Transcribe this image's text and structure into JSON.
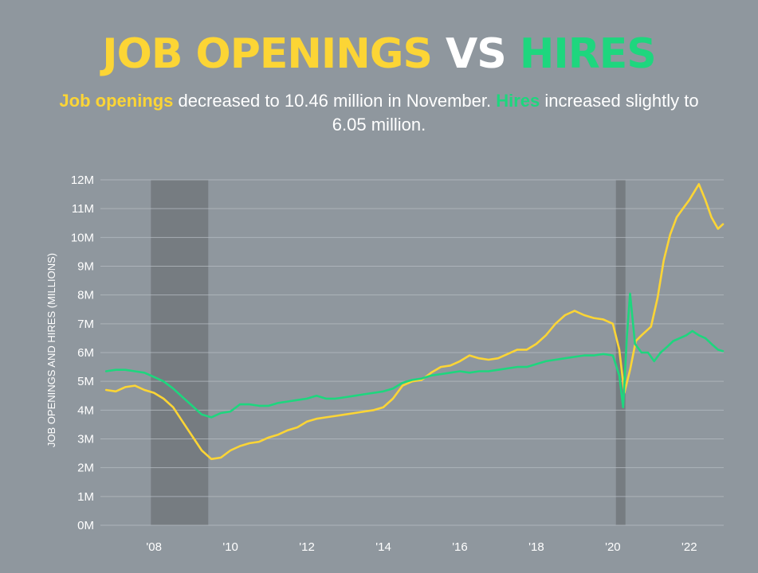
{
  "colors": {
    "background": "#8f979e",
    "openings": "#fcd535",
    "hires": "#1ed67e",
    "white": "#ffffff",
    "recession": "#6e7377",
    "grid": "#b4bac0"
  },
  "header": {
    "title_part1": "JOB OPENINGS",
    "title_part2": "VS",
    "title_part3": "HIRES",
    "sub_hl1": "Job openings",
    "sub_text1": " decreased to 10.46 million in November. ",
    "sub_hl2": "Hires",
    "sub_text2": " increased slightly to 6.05 million."
  },
  "chart_data": {
    "type": "line",
    "title": "JOB OPENINGS VS HIRES",
    "xlabel": "",
    "ylabel": "JOB OPENINGS AND HIRES (MILLIONS)",
    "xlim": [
      2006.6,
      2022.9
    ],
    "ylim": [
      0,
      12
    ],
    "grid": true,
    "y_ticks": [
      0,
      1,
      2,
      3,
      4,
      5,
      6,
      7,
      8,
      9,
      10,
      11,
      12
    ],
    "y_tick_labels": [
      "0M",
      "1M",
      "2M",
      "3M",
      "4M",
      "5M",
      "6M",
      "7M",
      "8M",
      "9M",
      "10M",
      "11M",
      "12M"
    ],
    "x_ticks": [
      2008,
      2010,
      2012,
      2014,
      2016,
      2018,
      2020,
      2022
    ],
    "x_tick_labels": [
      "'08",
      "'10",
      "'12",
      "'14",
      "'16",
      "'18",
      "'20",
      "'22"
    ],
    "recessions": [
      [
        2007.92,
        2009.42
      ],
      [
        2020.08,
        2020.33
      ]
    ],
    "series": [
      {
        "name": "Job openings",
        "color": "#fcd535",
        "points": [
          [
            2006.75,
            4.7
          ],
          [
            2007.0,
            4.65
          ],
          [
            2007.25,
            4.8
          ],
          [
            2007.5,
            4.85
          ],
          [
            2007.75,
            4.7
          ],
          [
            2008.0,
            4.6
          ],
          [
            2008.25,
            4.4
          ],
          [
            2008.5,
            4.1
          ],
          [
            2008.75,
            3.6
          ],
          [
            2009.0,
            3.1
          ],
          [
            2009.25,
            2.6
          ],
          [
            2009.5,
            2.3
          ],
          [
            2009.75,
            2.35
          ],
          [
            2010.0,
            2.6
          ],
          [
            2010.25,
            2.75
          ],
          [
            2010.5,
            2.85
          ],
          [
            2010.75,
            2.9
          ],
          [
            2011.0,
            3.05
          ],
          [
            2011.25,
            3.15
          ],
          [
            2011.5,
            3.3
          ],
          [
            2011.75,
            3.4
          ],
          [
            2012.0,
            3.6
          ],
          [
            2012.25,
            3.7
          ],
          [
            2012.5,
            3.75
          ],
          [
            2012.75,
            3.8
          ],
          [
            2013.0,
            3.85
          ],
          [
            2013.25,
            3.9
          ],
          [
            2013.5,
            3.95
          ],
          [
            2013.75,
            4.0
          ],
          [
            2014.0,
            4.1
          ],
          [
            2014.25,
            4.4
          ],
          [
            2014.5,
            4.85
          ],
          [
            2014.75,
            5.0
          ],
          [
            2015.0,
            5.05
          ],
          [
            2015.25,
            5.3
          ],
          [
            2015.5,
            5.5
          ],
          [
            2015.75,
            5.55
          ],
          [
            2016.0,
            5.7
          ],
          [
            2016.25,
            5.9
          ],
          [
            2016.5,
            5.8
          ],
          [
            2016.75,
            5.75
          ],
          [
            2017.0,
            5.8
          ],
          [
            2017.25,
            5.95
          ],
          [
            2017.5,
            6.1
          ],
          [
            2017.75,
            6.1
          ],
          [
            2018.0,
            6.3
          ],
          [
            2018.25,
            6.6
          ],
          [
            2018.5,
            7.0
          ],
          [
            2018.75,
            7.3
          ],
          [
            2019.0,
            7.45
          ],
          [
            2019.25,
            7.3
          ],
          [
            2019.5,
            7.2
          ],
          [
            2019.75,
            7.15
          ],
          [
            2020.0,
            7.0
          ],
          [
            2020.17,
            6.1
          ],
          [
            2020.3,
            4.6
          ],
          [
            2020.45,
            5.4
          ],
          [
            2020.6,
            6.4
          ],
          [
            2020.75,
            6.6
          ],
          [
            2021.0,
            6.9
          ],
          [
            2021.17,
            7.9
          ],
          [
            2021.33,
            9.2
          ],
          [
            2021.5,
            10.1
          ],
          [
            2021.67,
            10.7
          ],
          [
            2021.83,
            11.0
          ],
          [
            2022.0,
            11.3
          ],
          [
            2022.25,
            11.85
          ],
          [
            2022.42,
            11.3
          ],
          [
            2022.58,
            10.7
          ],
          [
            2022.75,
            10.3
          ],
          [
            2022.88,
            10.46
          ]
        ]
      },
      {
        "name": "Hires",
        "color": "#1ed67e",
        "points": [
          [
            2006.75,
            5.35
          ],
          [
            2007.0,
            5.4
          ],
          [
            2007.25,
            5.4
          ],
          [
            2007.5,
            5.35
          ],
          [
            2007.75,
            5.3
          ],
          [
            2008.0,
            5.15
          ],
          [
            2008.25,
            5.0
          ],
          [
            2008.5,
            4.75
          ],
          [
            2008.75,
            4.45
          ],
          [
            2009.0,
            4.15
          ],
          [
            2009.25,
            3.85
          ],
          [
            2009.5,
            3.75
          ],
          [
            2009.75,
            3.9
          ],
          [
            2010.0,
            3.95
          ],
          [
            2010.25,
            4.2
          ],
          [
            2010.5,
            4.2
          ],
          [
            2010.75,
            4.15
          ],
          [
            2011.0,
            4.15
          ],
          [
            2011.25,
            4.25
          ],
          [
            2011.5,
            4.3
          ],
          [
            2011.75,
            4.35
          ],
          [
            2012.0,
            4.4
          ],
          [
            2012.25,
            4.5
          ],
          [
            2012.5,
            4.4
          ],
          [
            2012.75,
            4.4
          ],
          [
            2013.0,
            4.45
          ],
          [
            2013.25,
            4.5
          ],
          [
            2013.5,
            4.55
          ],
          [
            2013.75,
            4.6
          ],
          [
            2014.0,
            4.65
          ],
          [
            2014.25,
            4.75
          ],
          [
            2014.5,
            4.95
          ],
          [
            2014.75,
            5.05
          ],
          [
            2015.0,
            5.1
          ],
          [
            2015.25,
            5.2
          ],
          [
            2015.5,
            5.25
          ],
          [
            2015.75,
            5.3
          ],
          [
            2016.0,
            5.35
          ],
          [
            2016.25,
            5.3
          ],
          [
            2016.5,
            5.35
          ],
          [
            2016.75,
            5.35
          ],
          [
            2017.0,
            5.4
          ],
          [
            2017.25,
            5.45
          ],
          [
            2017.5,
            5.5
          ],
          [
            2017.75,
            5.5
          ],
          [
            2018.0,
            5.6
          ],
          [
            2018.25,
            5.7
          ],
          [
            2018.5,
            5.75
          ],
          [
            2018.75,
            5.8
          ],
          [
            2019.0,
            5.85
          ],
          [
            2019.25,
            5.9
          ],
          [
            2019.5,
            5.9
          ],
          [
            2019.75,
            5.95
          ],
          [
            2020.0,
            5.9
          ],
          [
            2020.17,
            5.2
          ],
          [
            2020.27,
            4.1
          ],
          [
            2020.37,
            6.6
          ],
          [
            2020.45,
            8.05
          ],
          [
            2020.58,
            6.3
          ],
          [
            2020.75,
            6.0
          ],
          [
            2020.92,
            6.0
          ],
          [
            2021.08,
            5.7
          ],
          [
            2021.25,
            6.0
          ],
          [
            2021.42,
            6.2
          ],
          [
            2021.58,
            6.4
          ],
          [
            2021.75,
            6.5
          ],
          [
            2021.92,
            6.6
          ],
          [
            2022.08,
            6.75
          ],
          [
            2022.25,
            6.6
          ],
          [
            2022.42,
            6.5
          ],
          [
            2022.58,
            6.3
          ],
          [
            2022.75,
            6.1
          ],
          [
            2022.88,
            6.05
          ]
        ]
      }
    ]
  }
}
